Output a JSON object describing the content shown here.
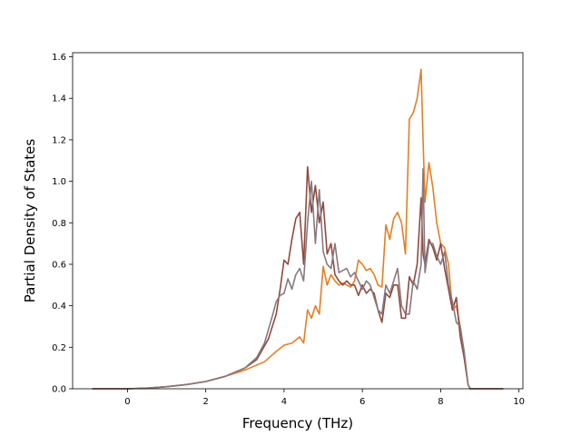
{
  "chart_data": {
    "type": "line",
    "title": "",
    "xlabel": "Frequency (THz)",
    "ylabel": "Partial Density of States",
    "xlim": [
      -1.4,
      10.1
    ],
    "ylim": [
      0.0,
      1.62
    ],
    "xticks": [
      0,
      2,
      4,
      6,
      8,
      10
    ],
    "yticks": [
      0.0,
      0.2,
      0.4,
      0.6,
      0.8,
      1.0,
      1.2,
      1.4,
      1.6
    ],
    "ytick_labels": [
      "0.0",
      "0.2",
      "0.4",
      "0.6",
      "0.8",
      "1.0",
      "1.2",
      "1.4",
      "1.6"
    ],
    "grid": false,
    "legend": "none",
    "series": [
      {
        "color": "#e37f26",
        "x": [
          -0.9,
          0.0,
          0.5,
          1.0,
          1.5,
          2.0,
          2.5,
          3.0,
          3.5,
          3.8,
          4.0,
          4.2,
          4.4,
          4.5,
          4.6,
          4.7,
          4.8,
          4.9,
          5.0,
          5.1,
          5.2,
          5.3,
          5.4,
          5.5,
          5.6,
          5.7,
          5.8,
          5.9,
          6.0,
          6.1,
          6.2,
          6.3,
          6.4,
          6.5,
          6.6,
          6.7,
          6.8,
          6.9,
          7.0,
          7.1,
          7.2,
          7.3,
          7.4,
          7.5,
          7.55,
          7.6,
          7.7,
          7.8,
          7.9,
          8.0,
          8.1,
          8.2,
          8.3,
          8.4,
          8.5,
          8.6,
          8.7,
          8.75,
          9.0,
          9.6
        ],
        "y": [
          0.0,
          0.0,
          0.003,
          0.01,
          0.02,
          0.035,
          0.06,
          0.09,
          0.13,
          0.18,
          0.21,
          0.22,
          0.25,
          0.22,
          0.38,
          0.34,
          0.4,
          0.36,
          0.59,
          0.5,
          0.55,
          0.52,
          0.5,
          0.51,
          0.5,
          0.49,
          0.52,
          0.62,
          0.6,
          0.57,
          0.58,
          0.55,
          0.5,
          0.49,
          0.79,
          0.72,
          0.82,
          0.85,
          0.8,
          0.65,
          1.3,
          1.33,
          1.4,
          1.54,
          1.2,
          0.9,
          1.09,
          0.97,
          0.8,
          0.7,
          0.68,
          0.6,
          0.38,
          0.4,
          0.3,
          0.15,
          0.02,
          0.0,
          0.0,
          0.0
        ]
      },
      {
        "color": "#8f4a3e",
        "x": [
          -0.9,
          0.0,
          0.5,
          1.0,
          1.5,
          2.0,
          2.5,
          3.0,
          3.3,
          3.6,
          3.8,
          3.9,
          4.0,
          4.1,
          4.2,
          4.3,
          4.4,
          4.5,
          4.6,
          4.7,
          4.8,
          4.9,
          5.0,
          5.1,
          5.2,
          5.3,
          5.4,
          5.5,
          5.6,
          5.7,
          5.8,
          5.9,
          6.0,
          6.1,
          6.2,
          6.3,
          6.4,
          6.5,
          6.6,
          6.7,
          6.8,
          6.9,
          7.0,
          7.1,
          7.2,
          7.3,
          7.4,
          7.5,
          7.55,
          7.6,
          7.7,
          7.8,
          7.9,
          8.0,
          8.1,
          8.2,
          8.3,
          8.4,
          8.5,
          8.6,
          8.7,
          8.75,
          9.0,
          9.6
        ],
        "y": [
          0.0,
          0.0,
          0.003,
          0.01,
          0.02,
          0.035,
          0.06,
          0.1,
          0.14,
          0.24,
          0.36,
          0.48,
          0.62,
          0.6,
          0.72,
          0.82,
          0.85,
          0.6,
          1.07,
          0.85,
          0.98,
          0.8,
          0.9,
          0.65,
          0.7,
          0.55,
          0.52,
          0.5,
          0.52,
          0.5,
          0.5,
          0.45,
          0.5,
          0.46,
          0.48,
          0.46,
          0.38,
          0.32,
          0.46,
          0.44,
          0.5,
          0.5,
          0.34,
          0.34,
          0.54,
          0.5,
          0.6,
          0.92,
          0.65,
          0.6,
          0.72,
          0.68,
          0.62,
          0.7,
          0.58,
          0.48,
          0.38,
          0.44,
          0.25,
          0.15,
          0.02,
          0.0,
          0.0,
          0.0
        ]
      },
      {
        "color": "#87797f",
        "x": [
          -0.9,
          0.0,
          0.5,
          1.0,
          1.5,
          2.0,
          2.5,
          3.0,
          3.3,
          3.5,
          3.7,
          3.8,
          3.9,
          4.0,
          4.1,
          4.2,
          4.3,
          4.4,
          4.5,
          4.6,
          4.7,
          4.8,
          4.9,
          5.0,
          5.1,
          5.2,
          5.3,
          5.4,
          5.5,
          5.6,
          5.7,
          5.8,
          5.9,
          6.0,
          6.1,
          6.2,
          6.3,
          6.4,
          6.5,
          6.6,
          6.7,
          6.8,
          6.9,
          7.0,
          7.1,
          7.2,
          7.3,
          7.4,
          7.5,
          7.55,
          7.6,
          7.7,
          7.8,
          7.9,
          8.0,
          8.1,
          8.2,
          8.3,
          8.4,
          8.5,
          8.6,
          8.7,
          8.75,
          9.0,
          9.6
        ],
        "y": [
          0.0,
          0.0,
          0.003,
          0.01,
          0.02,
          0.035,
          0.06,
          0.1,
          0.15,
          0.22,
          0.35,
          0.42,
          0.45,
          0.46,
          0.53,
          0.48,
          0.55,
          0.58,
          0.52,
          0.8,
          1.0,
          0.7,
          0.96,
          0.66,
          0.6,
          0.58,
          0.7,
          0.56,
          0.57,
          0.58,
          0.54,
          0.56,
          0.52,
          0.48,
          0.52,
          0.5,
          0.44,
          0.38,
          0.36,
          0.5,
          0.46,
          0.52,
          0.58,
          0.4,
          0.36,
          0.36,
          0.52,
          0.48,
          0.6,
          1.06,
          0.56,
          0.7,
          0.7,
          0.64,
          0.6,
          0.66,
          0.5,
          0.42,
          0.32,
          0.3,
          0.18,
          0.02,
          0.0,
          0.0,
          0.0
        ]
      }
    ]
  }
}
